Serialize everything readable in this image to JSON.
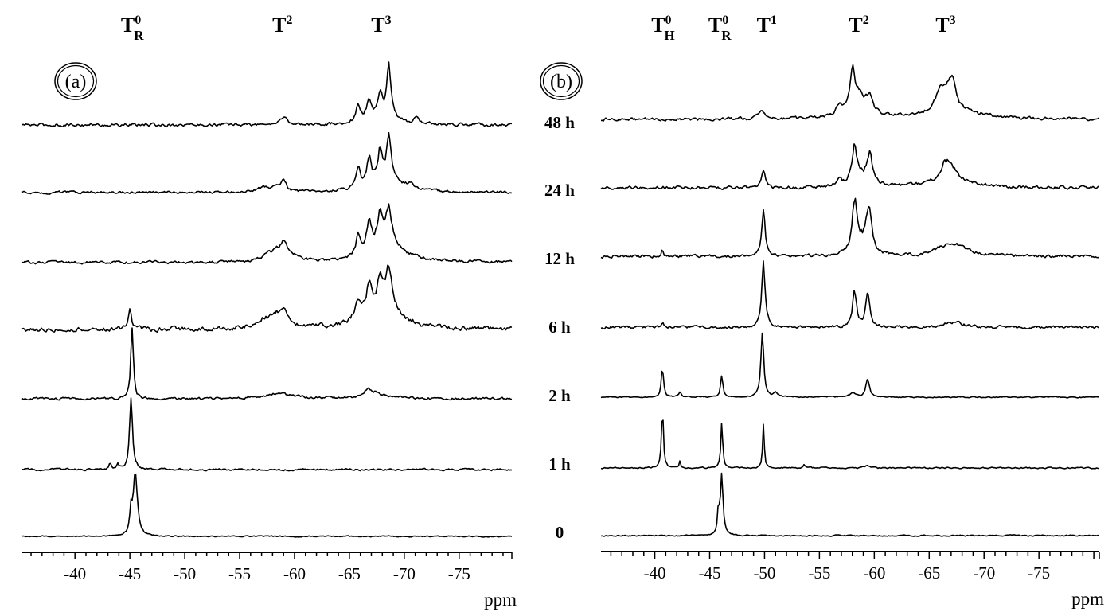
{
  "figure": {
    "panels": [
      {
        "id": "a",
        "tag": "(a)",
        "peak_labels": [
          {
            "main": "T",
            "sup": "0",
            "sub": "R",
            "ppm": -45.2
          },
          {
            "main": "T",
            "sup": "2",
            "sub": "",
            "ppm": -59.0
          },
          {
            "main": "T",
            "sup": "3",
            "sub": "",
            "ppm": -68.0
          }
        ]
      },
      {
        "id": "b",
        "tag": "(b)",
        "peak_labels": [
          {
            "main": "T",
            "sup": "0",
            "sub": "H",
            "ppm": -40.7
          },
          {
            "main": "T",
            "sup": "0",
            "sub": "R",
            "ppm": -45.9
          },
          {
            "main": "T",
            "sup": "1",
            "sub": "",
            "ppm": -50.3
          },
          {
            "main": "T",
            "sup": "2",
            "sub": "",
            "ppm": -58.7
          },
          {
            "main": "T",
            "sup": "3",
            "sub": "",
            "ppm": -66.6
          }
        ]
      }
    ],
    "time_labels": [
      "48 h",
      "24 h",
      "12 h",
      "6 h",
      "2 h",
      "1 h",
      "0"
    ],
    "axis": {
      "ticks": [
        "-40",
        "-45",
        "-50",
        "-55",
        "-60",
        "-65",
        "-70",
        "-75"
      ],
      "unit": "ppm"
    }
  },
  "chart_data": [
    {
      "type": "line",
      "title": "(a) stacked 29Si NMR spectra vs. reaction time",
      "xlabel": "ppm",
      "ylabel": "",
      "xlim": [
        -35.2,
        -79.8
      ],
      "x_reversed": true,
      "grid": false,
      "xticks": [
        -40,
        -45,
        -50,
        -55,
        -60,
        -65,
        -70,
        -75
      ],
      "annotations": [
        "T0R",
        "T2",
        "T3"
      ],
      "series": [
        {
          "name": "48 h",
          "noise": 2.2,
          "peaks": [
            [
              -59.0,
              9,
              0.4
            ],
            [
              -65.8,
              22,
              0.25
            ],
            [
              -66.8,
              26,
              0.25
            ],
            [
              -67.8,
              30,
              0.25
            ],
            [
              -68.6,
              64,
              0.22
            ],
            [
              -71.1,
              8,
              0.2
            ],
            [
              -68.2,
              10,
              1.6
            ]
          ]
        },
        {
          "name": "24 h",
          "noise": 1.8,
          "peaks": [
            [
              -57.3,
              6,
              0.8
            ],
            [
              -58.3,
              6,
              0.3
            ],
            [
              -59.0,
              14,
              0.3
            ],
            [
              -65.8,
              24,
              0.25
            ],
            [
              -66.8,
              32,
              0.25
            ],
            [
              -67.8,
              38,
              0.25
            ],
            [
              -68.6,
              58,
              0.25
            ],
            [
              -68.3,
              14,
              1.9
            ],
            [
              -70.6,
              6,
              0.3
            ]
          ]
        },
        {
          "name": "12 h",
          "noise": 2.0,
          "peaks": [
            [
              -57.6,
              9,
              0.6
            ],
            [
              -58.3,
              7,
              0.3
            ],
            [
              -59.0,
              22,
              0.4
            ],
            [
              -59.8,
              6,
              0.8
            ],
            [
              -65.8,
              26,
              0.25
            ],
            [
              -66.8,
              36,
              0.25
            ],
            [
              -67.8,
              42,
              0.28
            ],
            [
              -68.6,
              48,
              0.3
            ],
            [
              -68.4,
              22,
              2.0
            ]
          ]
        },
        {
          "name": "6 h",
          "noise": 3.2,
          "peaks": [
            [
              -45.0,
              28,
              0.15
            ],
            [
              -57.2,
              10,
              1.0
            ],
            [
              -58.4,
              12,
              0.6
            ],
            [
              -59.1,
              20,
              0.4
            ],
            [
              -65.8,
              24,
              0.3
            ],
            [
              -66.8,
              38,
              0.3
            ],
            [
              -67.8,
              40,
              0.3
            ],
            [
              -68.6,
              52,
              0.35
            ],
            [
              -68.0,
              22,
              2.2
            ]
          ]
        },
        {
          "name": "2 h",
          "noise": 1.8,
          "peaks": [
            [
              -45.2,
              90,
              0.14
            ],
            [
              -58.5,
              6,
              1.6
            ],
            [
              -66.8,
              8,
              0.5
            ],
            [
              -67.5,
              5,
              1.4
            ]
          ]
        },
        {
          "name": "1 h",
          "noise": 1.4,
          "peaks": [
            [
              -45.1,
              90,
              0.16
            ],
            [
              -43.2,
              8,
              0.12
            ],
            [
              -43.9,
              6,
              0.12
            ]
          ]
        },
        {
          "name": "0",
          "noise": 0.8,
          "peaks": [
            [
              -45.5,
              80,
              0.22
            ],
            [
              -45.1,
              30,
              0.12
            ]
          ]
        }
      ]
    },
    {
      "type": "line",
      "title": "(b) stacked 29Si NMR spectra vs. reaction time",
      "xlabel": "ppm",
      "ylabel": "",
      "xlim": [
        -35.1,
        -80.5
      ],
      "x_reversed": true,
      "grid": false,
      "xticks": [
        -40,
        -45,
        -50,
        -55,
        -60,
        -65,
        -70,
        -75
      ],
      "annotations": [
        "T0H",
        "T0R",
        "T1",
        "T2",
        "T3"
      ],
      "series": [
        {
          "name": "48 h",
          "noise": 2.2,
          "peaks": [
            [
              -49.7,
              12,
              0.3
            ],
            [
              -56.8,
              10,
              0.4
            ],
            [
              -58.0,
              44,
              0.25
            ],
            [
              -58.6,
              18,
              0.6
            ],
            [
              -59.6,
              20,
              0.35
            ],
            [
              -58.6,
              10,
              1.4
            ],
            [
              -66.0,
              22,
              0.4
            ],
            [
              -66.7,
              22,
              0.4
            ],
            [
              -67.2,
              26,
              0.3
            ],
            [
              -66.8,
              16,
              2.2
            ]
          ]
        },
        {
          "name": "24 h",
          "noise": 2.2,
          "peaks": [
            [
              -49.9,
              22,
              0.2
            ],
            [
              -56.8,
              8,
              0.3
            ],
            [
              -58.2,
              48,
              0.28
            ],
            [
              -59.6,
              38,
              0.3
            ],
            [
              -58.9,
              10,
              0.8
            ],
            [
              -66.4,
              18,
              0.4
            ],
            [
              -67.0,
              14,
              0.4
            ],
            [
              -67.0,
              12,
              1.9
            ]
          ]
        },
        {
          "name": "12 h",
          "noise": 2.2,
          "peaks": [
            [
              -40.7,
              10,
              0.1
            ],
            [
              -49.9,
              60,
              0.18
            ],
            [
              -58.2,
              62,
              0.25
            ],
            [
              -59.5,
              52,
              0.3
            ],
            [
              -58.9,
              14,
              0.8
            ],
            [
              -66.5,
              10,
              1.0
            ],
            [
              -67.7,
              10,
              1.2
            ]
          ]
        },
        {
          "name": "6 h",
          "noise": 2.0,
          "peaks": [
            [
              -40.7,
              6,
              0.1
            ],
            [
              -49.9,
              82,
              0.18
            ],
            [
              -58.2,
              44,
              0.22
            ],
            [
              -59.4,
              44,
              0.22
            ],
            [
              -66.5,
              4,
              0.5
            ],
            [
              -67.6,
              6,
              0.6
            ]
          ]
        },
        {
          "name": "2 h",
          "noise": 0.8,
          "peaks": [
            [
              -40.7,
              38,
              0.12
            ],
            [
              -42.3,
              6,
              0.15
            ],
            [
              -46.1,
              28,
              0.12
            ],
            [
              -49.8,
              78,
              0.16
            ],
            [
              -51.0,
              5,
              0.2
            ],
            [
              -58.0,
              5,
              0.4
            ],
            [
              -59.4,
              22,
              0.2
            ]
          ]
        },
        {
          "name": "1 h",
          "noise": 1.0,
          "peaks": [
            [
              -40.7,
              76,
              0.1
            ],
            [
              -42.3,
              8,
              0.07
            ],
            [
              -46.1,
              58,
              0.1
            ],
            [
              -49.9,
              55,
              0.09
            ],
            [
              -53.6,
              4,
              0.15
            ],
            [
              -59.3,
              3,
              0.2
            ]
          ]
        },
        {
          "name": "0",
          "noise": 0.9,
          "peaks": [
            [
              -46.1,
              78,
              0.14
            ],
            [
              -45.8,
              28,
              0.1
            ]
          ]
        }
      ]
    }
  ]
}
